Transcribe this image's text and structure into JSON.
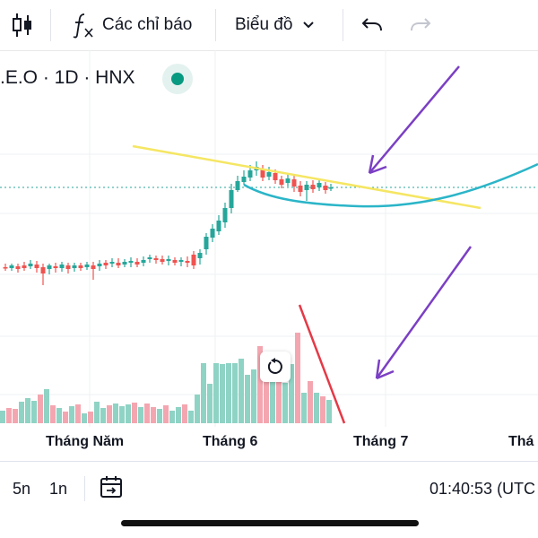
{
  "toolbar": {
    "indicators_label": "Các chỉ báo",
    "chart_label": "Biểu đồ"
  },
  "symbol": {
    "title": ".E.O · 1D · HNX"
  },
  "x_axis": {
    "labels": [
      "Tháng Năm",
      "Tháng 6",
      "Tháng 7",
      "Thá"
    ]
  },
  "bottom_bar": {
    "range_5d": "5n",
    "range_1m": "1n",
    "clock": "01:40:53 (UTC"
  },
  "colors": {
    "up": "#26a69a",
    "down": "#ef5350",
    "up_volume": "#8fd3c5",
    "down_volume": "#f4a6b0",
    "trendline": "#f5e663",
    "curve": "#2bb5c8",
    "arrow": "#7b3fc4",
    "red_line": "#e53946",
    "status": "#089981"
  },
  "icons": {
    "candles": "candlestick-icon",
    "fx": "fx-icon",
    "undo": "undo-icon",
    "redo": "redo-icon",
    "date_range": "date-range-icon",
    "reset": "reset-icon"
  }
}
